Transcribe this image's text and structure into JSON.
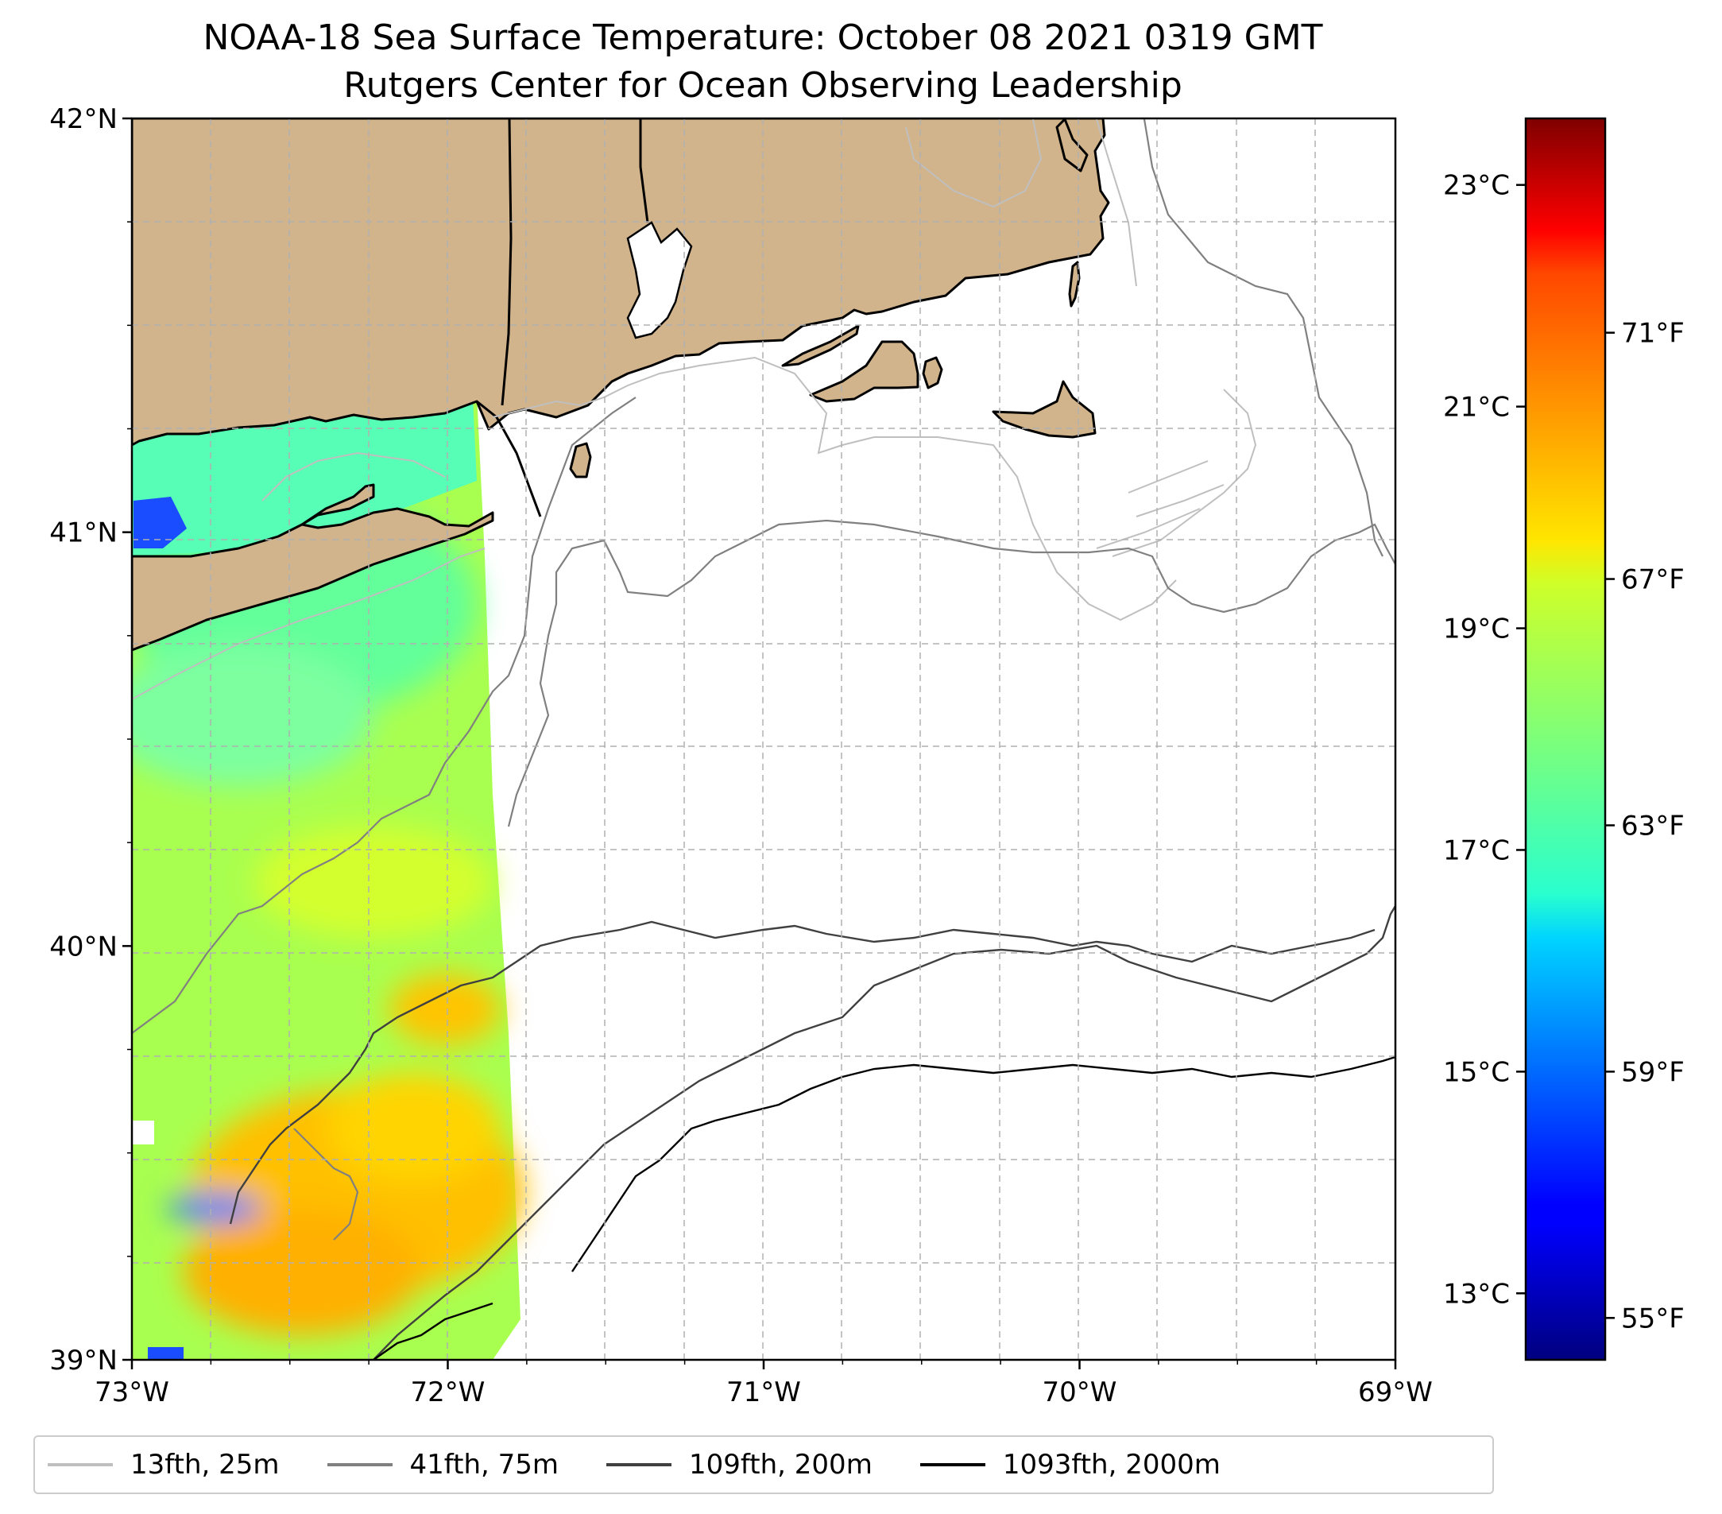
{
  "title": {
    "line1": "NOAA-18 Sea Surface Temperature: October 08 2021 0319 GMT",
    "line2": "Rutgers Center for Ocean Observing Leadership"
  },
  "map": {
    "lat_range": [
      39,
      42
    ],
    "lon_range": [
      -73,
      -69
    ],
    "lat_ticks": [
      {
        "value": 42,
        "label": "42°N"
      },
      {
        "value": 41,
        "label": "41°N"
      },
      {
        "value": 40,
        "label": "40°N"
      },
      {
        "value": 39,
        "label": "39°N"
      }
    ],
    "lon_ticks": [
      {
        "value": -73,
        "label": "73°W"
      },
      {
        "value": -72,
        "label": "72°W"
      },
      {
        "value": -71,
        "label": "71°W"
      },
      {
        "value": -70,
        "label": "70°W"
      },
      {
        "value": -69,
        "label": "69°W"
      }
    ],
    "land_color": "#d2b48c",
    "gridlines": true
  },
  "colorbar": {
    "celsius_range": [
      12.4,
      23.6
    ],
    "celsius_ticks": [
      {
        "value": 13,
        "label": "13°C"
      },
      {
        "value": 15,
        "label": "15°C"
      },
      {
        "value": 17,
        "label": "17°C"
      },
      {
        "value": 19,
        "label": "19°C"
      },
      {
        "value": 21,
        "label": "21°C"
      },
      {
        "value": 23,
        "label": "23°C"
      }
    ],
    "fahrenheit_ticks": [
      {
        "value": 55,
        "label": "55°F"
      },
      {
        "value": 59,
        "label": "59°F"
      },
      {
        "value": 63,
        "label": "63°F"
      },
      {
        "value": 67,
        "label": "67°F"
      },
      {
        "value": 71,
        "label": "71°F"
      }
    ],
    "colormap": "jet"
  },
  "legend": {
    "items": [
      {
        "label": "13fth, 25m",
        "color": "#bfbfbf"
      },
      {
        "label": "41fth, 75m",
        "color": "#808080"
      },
      {
        "label": "109fth, 200m",
        "color": "#404040"
      },
      {
        "label": "1093fth, 2000m",
        "color": "#000000"
      }
    ]
  }
}
